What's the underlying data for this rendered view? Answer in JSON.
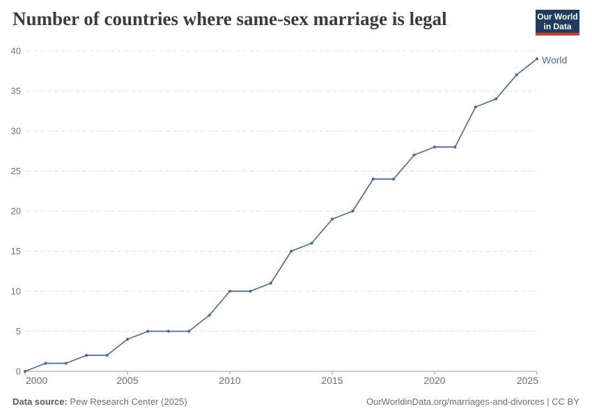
{
  "title": "Number of countries where same-sex marriage is legal",
  "logo": {
    "line1": "Our World",
    "line2": "in Data",
    "bg": "#1d3d63",
    "accent": "#cd3c2c"
  },
  "footer": {
    "source_label": "Data source:",
    "source_value": "Pew Research Center (2025)",
    "right": "OurWorldinData.org/marriages-and-divorces | CC BY"
  },
  "chart_data": {
    "type": "line",
    "title": "Number of countries where same-sex marriage is legal",
    "x": [
      2000,
      2001,
      2002,
      2003,
      2004,
      2005,
      2006,
      2007,
      2008,
      2009,
      2010,
      2011,
      2012,
      2013,
      2014,
      2015,
      2016,
      2017,
      2018,
      2019,
      2020,
      2021,
      2022,
      2023,
      2024,
      2025
    ],
    "series": [
      {
        "name": "World",
        "color": "#4c6a9c",
        "values": [
          0,
          1,
          1,
          2,
          2,
          4,
          5,
          5,
          5,
          7,
          10,
          10,
          11,
          15,
          16,
          19,
          20,
          24,
          24,
          27,
          28,
          28,
          33,
          34,
          37,
          39
        ]
      }
    ],
    "xlabel": "",
    "ylabel": "",
    "xlim": [
      2000,
      2025
    ],
    "ylim": [
      0,
      40
    ],
    "yticks": [
      0,
      5,
      10,
      15,
      20,
      25,
      30,
      35,
      40
    ],
    "xticks": [
      2000,
      2005,
      2010,
      2015,
      2020,
      2025
    ],
    "grid": "dashed-horizontal",
    "legend_position": "end-of-line"
  }
}
